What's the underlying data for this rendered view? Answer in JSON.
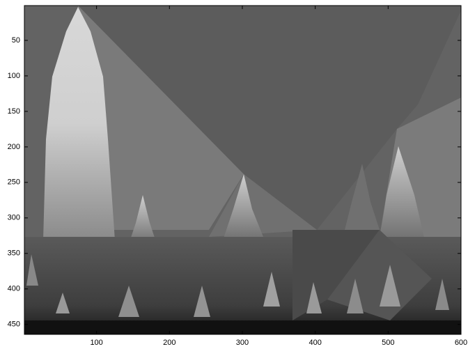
{
  "chart_data": {
    "type": "image",
    "colormap": "gray",
    "xlim": [
      1,
      600
    ],
    "ylim": [
      1,
      464
    ],
    "y_reversed": true,
    "xticks": [
      100,
      200,
      300,
      400,
      500,
      600
    ],
    "yticks": [
      50,
      100,
      150,
      200,
      250,
      300,
      350,
      400,
      450
    ]
  }
}
